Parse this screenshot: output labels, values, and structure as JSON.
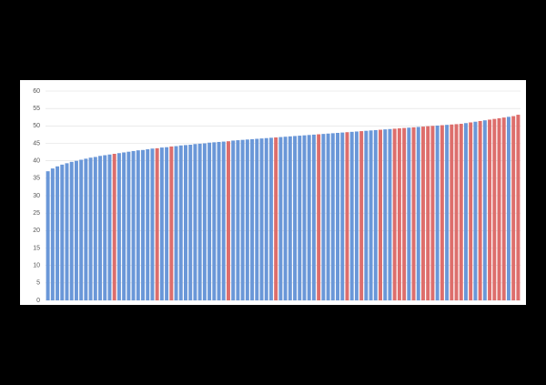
{
  "chart_data": {
    "type": "bar",
    "values": [
      37.0,
      37.8,
      38.4,
      38.9,
      39.3,
      39.7,
      40.0,
      40.3,
      40.6,
      40.9,
      41.1,
      41.4,
      41.6,
      41.8,
      42.0,
      42.2,
      42.4,
      42.6,
      42.8,
      43.0,
      43.1,
      43.3,
      43.5,
      43.6,
      43.8,
      43.9,
      44.1,
      44.2,
      44.4,
      44.5,
      44.6,
      44.8,
      44.9,
      45.0,
      45.2,
      45.3,
      45.4,
      45.5,
      45.6,
      45.8,
      45.9,
      46.0,
      46.1,
      46.2,
      46.3,
      46.4,
      46.5,
      46.6,
      46.7,
      46.8,
      46.9,
      47.0,
      47.1,
      47.2,
      47.3,
      47.4,
      47.5,
      47.6,
      47.7,
      47.8,
      47.9,
      48.0,
      48.1,
      48.2,
      48.3,
      48.4,
      48.5,
      48.6,
      48.7,
      48.8,
      48.9,
      49.0,
      49.1,
      49.2,
      49.3,
      49.4,
      49.5,
      49.6,
      49.7,
      49.8,
      49.9,
      50.0,
      50.1,
      50.2,
      50.3,
      50.4,
      50.5,
      50.6,
      50.8,
      51.0,
      51.2,
      51.4,
      51.6,
      51.8,
      52.0,
      52.2,
      52.4,
      52.6,
      52.8,
      53.2
    ],
    "colors": [
      "#6a97d8",
      "#6a97d8",
      "#6a97d8",
      "#6a97d8",
      "#6a97d8",
      "#6a97d8",
      "#6a97d8",
      "#6a97d8",
      "#6a97d8",
      "#6a97d8",
      "#6a97d8",
      "#6a97d8",
      "#6a97d8",
      "#6a97d8",
      "#dd6e6c",
      "#6a97d8",
      "#6a97d8",
      "#6a97d8",
      "#6a97d8",
      "#6a97d8",
      "#6a97d8",
      "#6a97d8",
      "#6a97d8",
      "#dd6e6c",
      "#6a97d8",
      "#6a97d8",
      "#dd6e6c",
      "#6a97d8",
      "#6a97d8",
      "#6a97d8",
      "#6a97d8",
      "#6a97d8",
      "#6a97d8",
      "#6a97d8",
      "#6a97d8",
      "#6a97d8",
      "#6a97d8",
      "#6a97d8",
      "#dd6e6c",
      "#6a97d8",
      "#6a97d8",
      "#6a97d8",
      "#6a97d8",
      "#6a97d8",
      "#6a97d8",
      "#6a97d8",
      "#6a97d8",
      "#6a97d8",
      "#dd6e6c",
      "#6a97d8",
      "#6a97d8",
      "#6a97d8",
      "#6a97d8",
      "#6a97d8",
      "#6a97d8",
      "#6a97d8",
      "#6a97d8",
      "#dd6e6c",
      "#6a97d8",
      "#6a97d8",
      "#6a97d8",
      "#6a97d8",
      "#6a97d8",
      "#dd6e6c",
      "#6a97d8",
      "#6a97d8",
      "#dd6e6c",
      "#6a97d8",
      "#6a97d8",
      "#6a97d8",
      "#dd6e6c",
      "#6a97d8",
      "#6a97d8",
      "#dd6e6c",
      "#dd6e6c",
      "#dd6e6c",
      "#6a97d8",
      "#dd6e6c",
      "#6a97d8",
      "#dd6e6c",
      "#dd6e6c",
      "#dd6e6c",
      "#6a97d8",
      "#dd6e6c",
      "#6a97d8",
      "#dd6e6c",
      "#dd6e6c",
      "#dd6e6c",
      "#6a97d8",
      "#dd6e6c",
      "#6a97d8",
      "#dd6e6c",
      "#6a97d8",
      "#dd6e6c",
      "#dd6e6c",
      "#dd6e6c",
      "#dd6e6c",
      "#6a97d8",
      "#dd6e6c",
      "#dd6e6c"
    ],
    "ylim": [
      0,
      60
    ],
    "yticks": [
      0,
      5,
      10,
      15,
      20,
      25,
      30,
      35,
      40,
      45,
      50,
      55,
      60
    ],
    "grid": true
  }
}
